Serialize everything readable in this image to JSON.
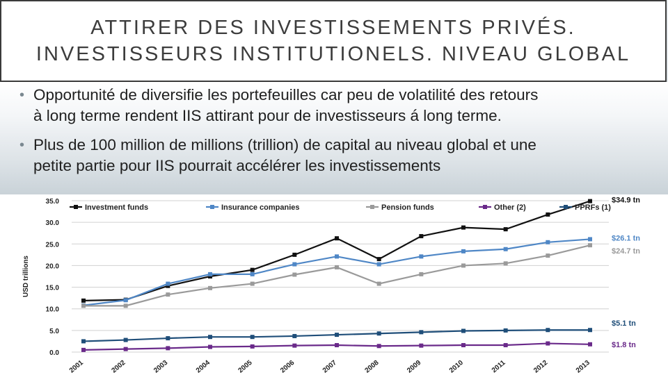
{
  "slide": {
    "title_line1": "ATTIRER DES INVESTISSEMENTS PRIVÉS.",
    "title_line2": "INVESTISSEURS INSTITUTIONELS. NIVEAU GLOBAL",
    "bullets": [
      {
        "line1": "Opportunité de diversifie les portefeuilles car peu de volatilité des retours",
        "line2": "à long terme rendent IIS attirant pour de investisseurs á long terme."
      },
      {
        "line1": "Plus de 100 million de millions (trillion) de capital au niveau global et une",
        "line2": "petite partie pour IIS pourrait accélérer les investissements"
      }
    ],
    "bullet_icon": "•"
  },
  "colors": {
    "investment_funds": "#111111",
    "insurance_companies": "#4f87c6",
    "pension_funds": "#9a9a9a",
    "other": "#6a2a8a",
    "pprfs": "#1f4e79"
  },
  "chart_data": {
    "type": "line",
    "ylabel": "USD trillions",
    "ylim": [
      0,
      35
    ],
    "yticks": [
      "0.0",
      "5.0",
      "10.0",
      "15.0",
      "20.0",
      "25.0",
      "30.0",
      "35.0"
    ],
    "categories": [
      "2001",
      "2002",
      "2003",
      "2004",
      "2005",
      "2006",
      "2007",
      "2008",
      "2009",
      "2010",
      "2011",
      "2012",
      "2013"
    ],
    "grid": true,
    "legend": "top",
    "series": [
      {
        "name": "Investment funds",
        "color": "#111111",
        "end_label": "$34.9 tn",
        "end_label_color": "#111111",
        "values": [
          11.9,
          12.1,
          15.3,
          17.5,
          19.0,
          22.5,
          26.3,
          21.5,
          26.8,
          28.8,
          28.4,
          31.8,
          34.9
        ]
      },
      {
        "name": "Insurance companies",
        "color": "#4f87c6",
        "end_label": "$26.1 tn",
        "end_label_color": "#4f87c6",
        "values": [
          10.8,
          12.0,
          15.8,
          18.0,
          18.0,
          20.3,
          22.1,
          20.3,
          22.1,
          23.3,
          23.8,
          25.4,
          26.1
        ]
      },
      {
        "name": "Pension funds",
        "color": "#9a9a9a",
        "end_label": "$24.7 tn",
        "end_label_color": "#9a9a9a",
        "values": [
          10.7,
          10.7,
          13.3,
          14.8,
          15.8,
          17.9,
          19.6,
          15.8,
          18.0,
          20.0,
          20.5,
          22.3,
          24.7
        ]
      },
      {
        "name": "Other (2)",
        "color": "#6a2a8a",
        "end_label": "$1.8 tn",
        "end_label_color": "#6a2a8a",
        "values": [
          0.5,
          0.7,
          0.9,
          1.2,
          1.3,
          1.5,
          1.6,
          1.4,
          1.5,
          1.6,
          1.6,
          2.0,
          1.8
        ]
      },
      {
        "name": "PPRFs (1)",
        "color": "#1f4e79",
        "end_label": "$5.1 tn",
        "end_label_color": "#1f4e79",
        "values": [
          2.5,
          2.8,
          3.2,
          3.5,
          3.5,
          3.7,
          4.0,
          4.3,
          4.6,
          4.9,
          5.0,
          5.1,
          5.1
        ]
      }
    ]
  }
}
